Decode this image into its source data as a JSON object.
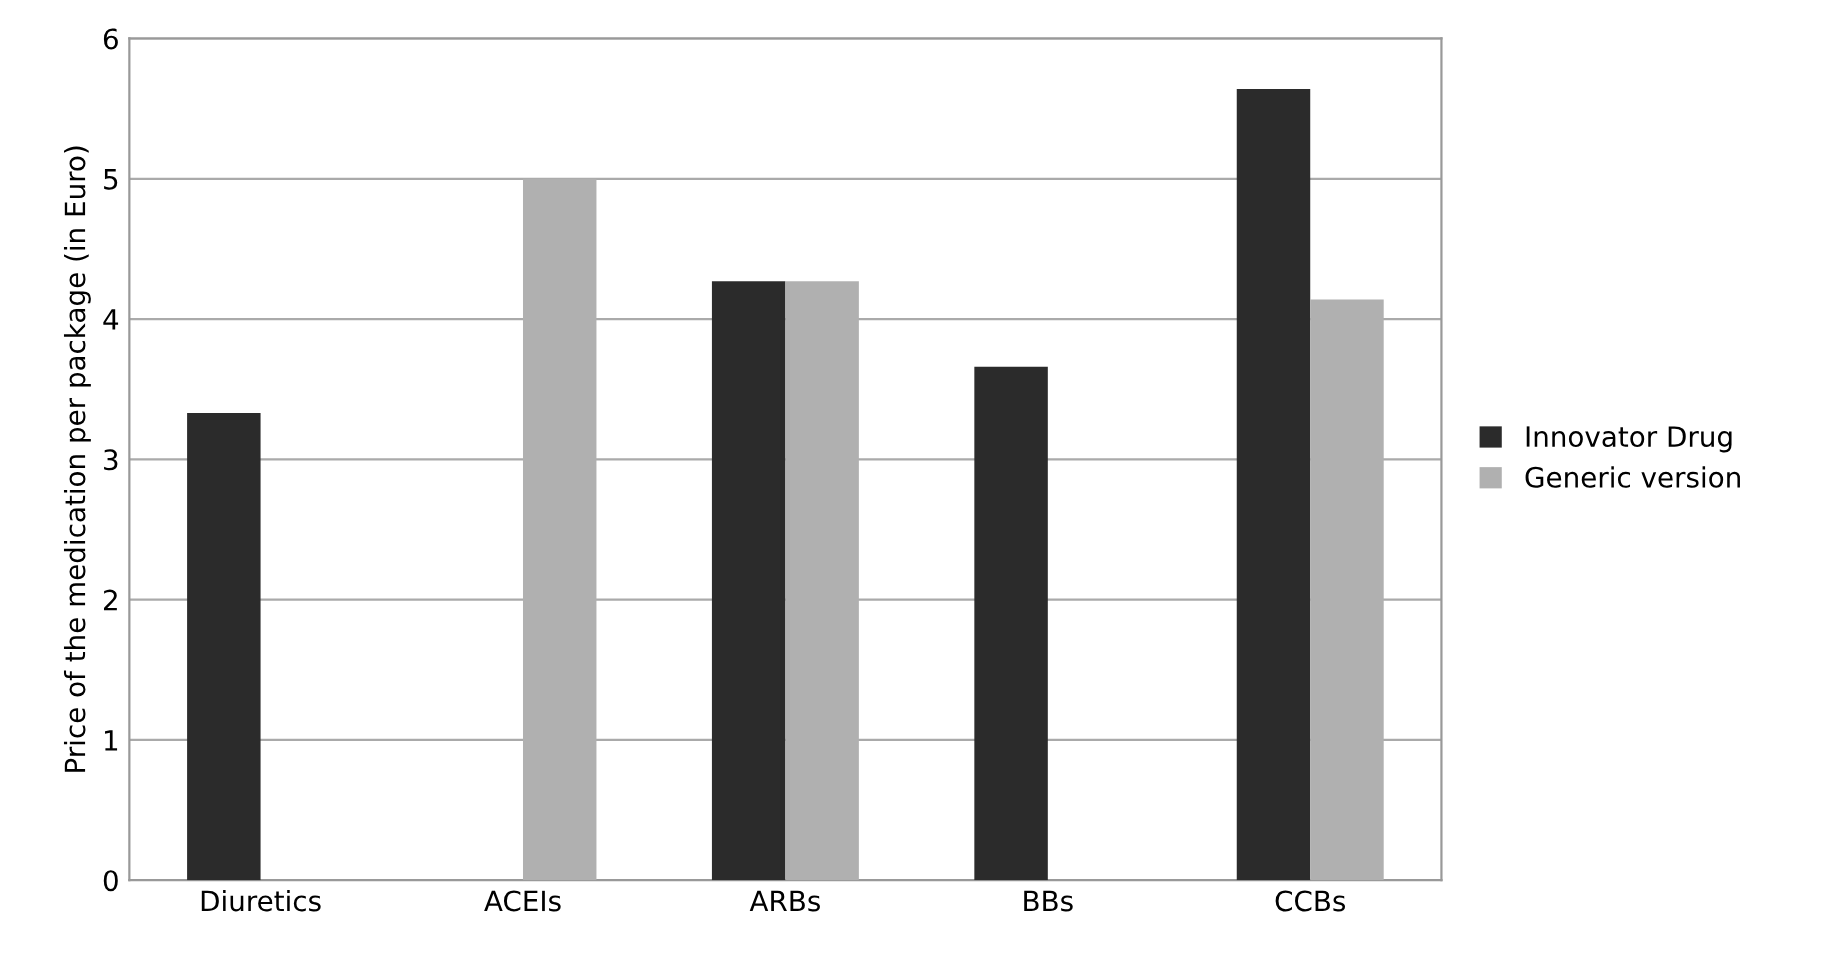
{
  "chart_data": {
    "type": "bar",
    "ylabel": "Price of the medication per package (in Euro)",
    "categories": [
      "Diuretics",
      "ACEIs",
      "ARBs",
      "BBs",
      "CCBs"
    ],
    "series": [
      {
        "name": "Innovator Drug",
        "color": "#2b2b2b",
        "values": [
          3.33,
          null,
          4.27,
          3.66,
          5.64
        ]
      },
      {
        "name": "Generic version",
        "color": "#b0b0b0",
        "values": [
          null,
          5.0,
          4.27,
          null,
          4.14
        ]
      }
    ],
    "ylim": [
      0,
      6
    ],
    "yticks": [
      0,
      1,
      2,
      3,
      4,
      5,
      6
    ],
    "grid": "y",
    "legend": "right"
  }
}
